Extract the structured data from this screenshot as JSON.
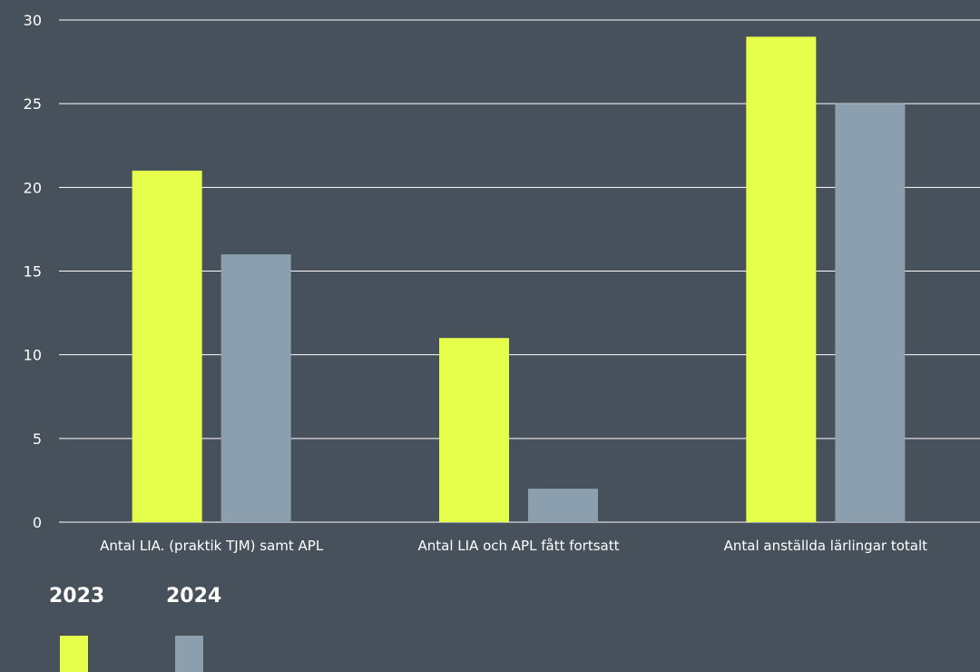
{
  "chart_data": {
    "type": "bar",
    "categories": [
      "Antal LIA. (praktik TJM) samt APL",
      "Antal LIA och APL fått fortsatt",
      "Antal anställda lärlingar totalt"
    ],
    "series": [
      {
        "name": "2023",
        "values": [
          21,
          11,
          29
        ],
        "color": "#e6ff4a"
      },
      {
        "name": "2024",
        "values": [
          16,
          2,
          25
        ],
        "color": "#8c9fae"
      }
    ],
    "title": "",
    "xlabel": "",
    "ylabel": "",
    "ylim": [
      0,
      30
    ],
    "yticks": [
      0,
      5,
      10,
      15,
      20,
      25,
      30
    ],
    "grid": true,
    "legend_position": "bottom-left"
  },
  "colors": {
    "background": "#47515c",
    "grid": "#ffffff",
    "text": "#ffffff"
  }
}
